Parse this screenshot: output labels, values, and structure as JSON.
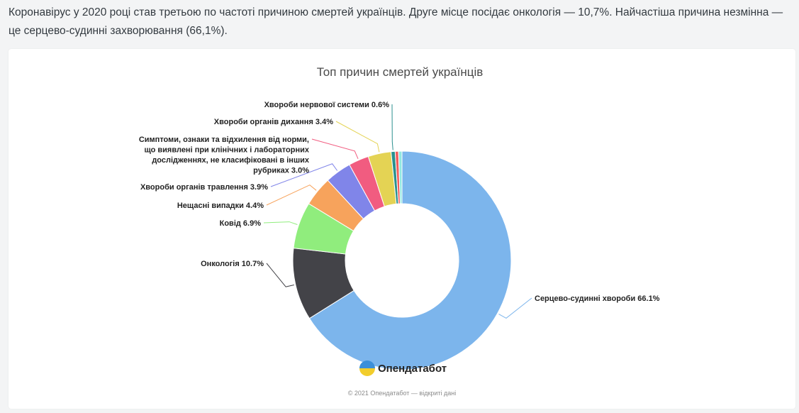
{
  "intro_text": "Коронавірус у 2020 році став третьою по частоті причиною смертей українців. Друге місце посідає онкологія — 10,7%. Найчастіша причина незмінна — це серцево-судинні захворювання (66,1%).",
  "brand": {
    "name": "Опендатабот",
    "logo_icon": "opendatabot-logo-icon"
  },
  "credit": "© 2021 Опендатабот — відкриті дані",
  "chart_data": {
    "type": "pie",
    "variant": "donut",
    "title": "Топ причин смертей українців",
    "unit": "%",
    "slices": [
      {
        "label": "Серцево-судинні хвороби",
        "value": 66.1,
        "color": "#7cb5ec",
        "label_lines": [
          "Серцево-судинні хвороби 66.1%"
        ]
      },
      {
        "label": "Онкологія",
        "value": 10.7,
        "color": "#434348",
        "label_lines": [
          "Онкологія 10.7%"
        ]
      },
      {
        "label": "Ковід",
        "value": 6.9,
        "color": "#90ed7d",
        "label_lines": [
          "Ковід 6.9%"
        ]
      },
      {
        "label": "Нещасні випадки",
        "value": 4.4,
        "color": "#f7a35c",
        "label_lines": [
          "Нещасні випадки 4.4%"
        ]
      },
      {
        "label": "Хвороби органів травлення",
        "value": 3.9,
        "color": "#8085e9",
        "label_lines": [
          "Хвороби органів травлення 3.9%"
        ]
      },
      {
        "label": "Симптоми, ознаки та відхилення від норми, що виявлені при клінічних і лабораторних дослідженнях, не класифіковані в інших рубриках",
        "value": 3.0,
        "color": "#f15c80",
        "label_lines": [
          "Симптоми, ознаки та відхилення від норми,",
          "що виявлені при клінічних і лабораторних",
          "дослідженнях, не класифіковані в інших",
          "рубриках 3.0%"
        ]
      },
      {
        "label": "Хвороби органів дихання",
        "value": 3.4,
        "color": "#e4d354",
        "label_lines": [
          "Хвороби органів дихання 3.4%"
        ]
      },
      {
        "label": "Хвороби нервової системи",
        "value": 0.6,
        "color": "#2b908f",
        "label_lines": [
          "Хвороби нервової системи 0.6%"
        ]
      },
      {
        "label": "",
        "value": 0.5,
        "color": "#f45b5b",
        "label_lines": []
      },
      {
        "label": "",
        "value": 0.5,
        "color": "#91e8e1",
        "label_lines": []
      }
    ]
  }
}
